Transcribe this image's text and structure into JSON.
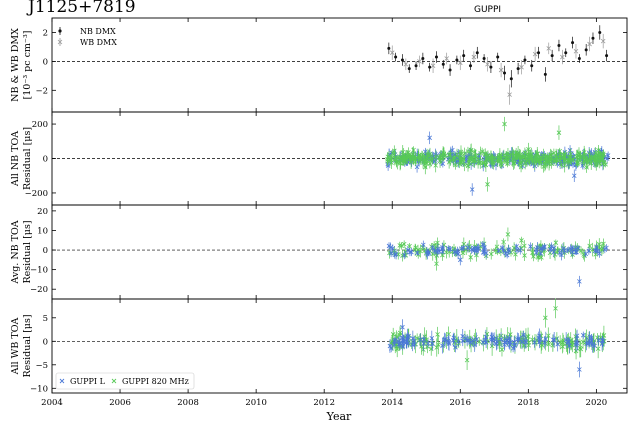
{
  "title": "J1125+7819",
  "backend_label": "GUPPI",
  "xlabel": "Year",
  "x_ticks": [
    "2004",
    "2006",
    "2008",
    "2010",
    "2012",
    "2014",
    "2016",
    "2018",
    "2020"
  ],
  "colors": {
    "nb_dmx": "#111111",
    "wb_dmx": "#999999",
    "guppi_l": "#4a78d6",
    "guppi_820": "#57c957"
  },
  "chart_data": [
    {
      "type": "scatter",
      "ylabel_line1": "NB & WB DMX",
      "ylabel_line2": "[10⁻³ pc cm⁻³]",
      "ylim": [
        -3.5,
        3
      ],
      "y_ticks": [
        "2",
        "0",
        "−2"
      ],
      "y_tick_values": [
        2,
        0,
        -2
      ],
      "legend": [
        "NB DMX",
        "WB DMX"
      ],
      "series": [
        {
          "name": "NB DMX",
          "x": [
            2013.9,
            2014.1,
            2014.3,
            2014.5,
            2014.7,
            2014.9,
            2015.1,
            2015.3,
            2015.5,
            2015.7,
            2015.9,
            2016.1,
            2016.3,
            2016.5,
            2016.7,
            2016.9,
            2017.1,
            2017.3,
            2017.5,
            2017.7,
            2017.9,
            2018.1,
            2018.3,
            2018.5,
            2018.7,
            2018.9,
            2019.1,
            2019.3,
            2019.5,
            2019.7,
            2019.9,
            2020.1,
            2020.3
          ],
          "y": [
            0.9,
            0.3,
            0.1,
            -0.5,
            -0.3,
            0.2,
            -0.4,
            0.3,
            -0.2,
            -0.6,
            0.1,
            0.4,
            -0.3,
            0.6,
            0.2,
            -0.4,
            0.3,
            -0.8,
            -1.2,
            -0.5,
            0.1,
            -0.3,
            0.6,
            -0.9,
            0.4,
            1.1,
            0.6,
            1.3,
            0.2,
            0.8,
            1.6,
            2.0,
            0.4
          ],
          "err": [
            0.4,
            0.3,
            0.4,
            0.3,
            0.3,
            0.4,
            0.3,
            0.4,
            0.3,
            0.4,
            0.3,
            0.4,
            0.3,
            0.4,
            0.3,
            0.4,
            0.3,
            0.5,
            0.6,
            0.4,
            0.3,
            0.4,
            0.4,
            0.5,
            0.4,
            0.4,
            0.3,
            0.4,
            0.3,
            0.4,
            0.4,
            0.5,
            0.4
          ]
        },
        {
          "name": "WB DMX",
          "x": [
            2014.0,
            2014.4,
            2014.8,
            2015.2,
            2015.6,
            2016.0,
            2016.4,
            2016.8,
            2017.2,
            2017.45,
            2017.8,
            2018.2,
            2018.6,
            2019.0,
            2019.4,
            2019.8,
            2020.2
          ],
          "y": [
            0.6,
            -0.2,
            0.0,
            -0.3,
            0.2,
            -0.1,
            0.3,
            -0.2,
            -0.6,
            -2.3,
            -0.4,
            0.5,
            0.9,
            0.3,
            0.7,
            1.2,
            1.4
          ],
          "err": [
            0.5,
            0.4,
            0.4,
            0.5,
            0.4,
            0.5,
            0.4,
            0.5,
            0.5,
            0.7,
            0.5,
            0.5,
            0.4,
            0.5,
            0.5,
            0.5,
            0.5
          ]
        }
      ]
    },
    {
      "type": "scatter",
      "ylabel_line1": "All NB TOA",
      "ylabel_line2": "Residual [μs]",
      "ylim": [
        -270,
        270
      ],
      "y_ticks": [
        "200",
        "0",
        "−200"
      ],
      "y_tick_values": [
        200,
        0,
        -200
      ],
      "series": [
        {
          "name": "GUPPI L",
          "x_range": [
            2013.85,
            2020.35
          ],
          "count": 260,
          "spread": 28,
          "err": 26,
          "outliers": [
            [
              2016.35,
              -180
            ],
            [
              2019.35,
              -100
            ],
            [
              2015.1,
              120
            ]
          ]
        },
        {
          "name": "GUPPI 820 MHz",
          "x_range": [
            2013.85,
            2020.35
          ],
          "count": 300,
          "spread": 32,
          "err": 30,
          "outliers": [
            [
              2017.3,
              200
            ],
            [
              2018.9,
              150
            ],
            [
              2016.8,
              -150
            ]
          ]
        }
      ]
    },
    {
      "type": "scatter",
      "ylabel_line1": "Avg. NB TOA",
      "ylabel_line2": "Residual [μs]",
      "ylim": [
        -25,
        23
      ],
      "y_ticks": [
        "20",
        "10",
        "0",
        "−10",
        "−20"
      ],
      "y_tick_values": [
        20,
        10,
        0,
        -10,
        -20
      ],
      "series": [
        {
          "name": "GUPPI L",
          "x_range": [
            2013.9,
            2020.3
          ],
          "count": 90,
          "spread": 1.8,
          "err": 2,
          "outliers": [
            [
              2019.5,
              -16
            ],
            [
              2016.0,
              -5
            ]
          ]
        },
        {
          "name": "GUPPI 820 MHz",
          "x_range": [
            2013.9,
            2020.3
          ],
          "count": 110,
          "spread": 2.4,
          "err": 2.5,
          "outliers": [
            [
              2017.4,
              8
            ],
            [
              2015.3,
              -7
            ]
          ]
        }
      ]
    },
    {
      "type": "scatter",
      "ylabel_line1": "All WB TOA",
      "ylabel_line2": "Residual [μs]",
      "ylim": [
        -11,
        9
      ],
      "y_ticks": [
        "5",
        "0",
        "−5",
        "−10"
      ],
      "y_tick_values": [
        5,
        0,
        -5,
        -10
      ],
      "legend": [
        "GUPPI L",
        "GUPPI 820 MHz"
      ],
      "series": [
        {
          "name": "GUPPI L",
          "x_range": [
            2013.9,
            2020.3
          ],
          "count": 110,
          "spread": 0.9,
          "err": 1.2,
          "outliers": [
            [
              2019.5,
              -6
            ],
            [
              2014.3,
              3
            ]
          ]
        },
        {
          "name": "GUPPI 820 MHz",
          "x_range": [
            2013.9,
            2020.3
          ],
          "count": 130,
          "spread": 1.2,
          "err": 1.5,
          "outliers": [
            [
              2018.5,
              5
            ],
            [
              2018.8,
              7
            ],
            [
              2016.2,
              -4
            ]
          ]
        }
      ]
    }
  ],
  "x_range": [
    2004,
    2020.9
  ]
}
